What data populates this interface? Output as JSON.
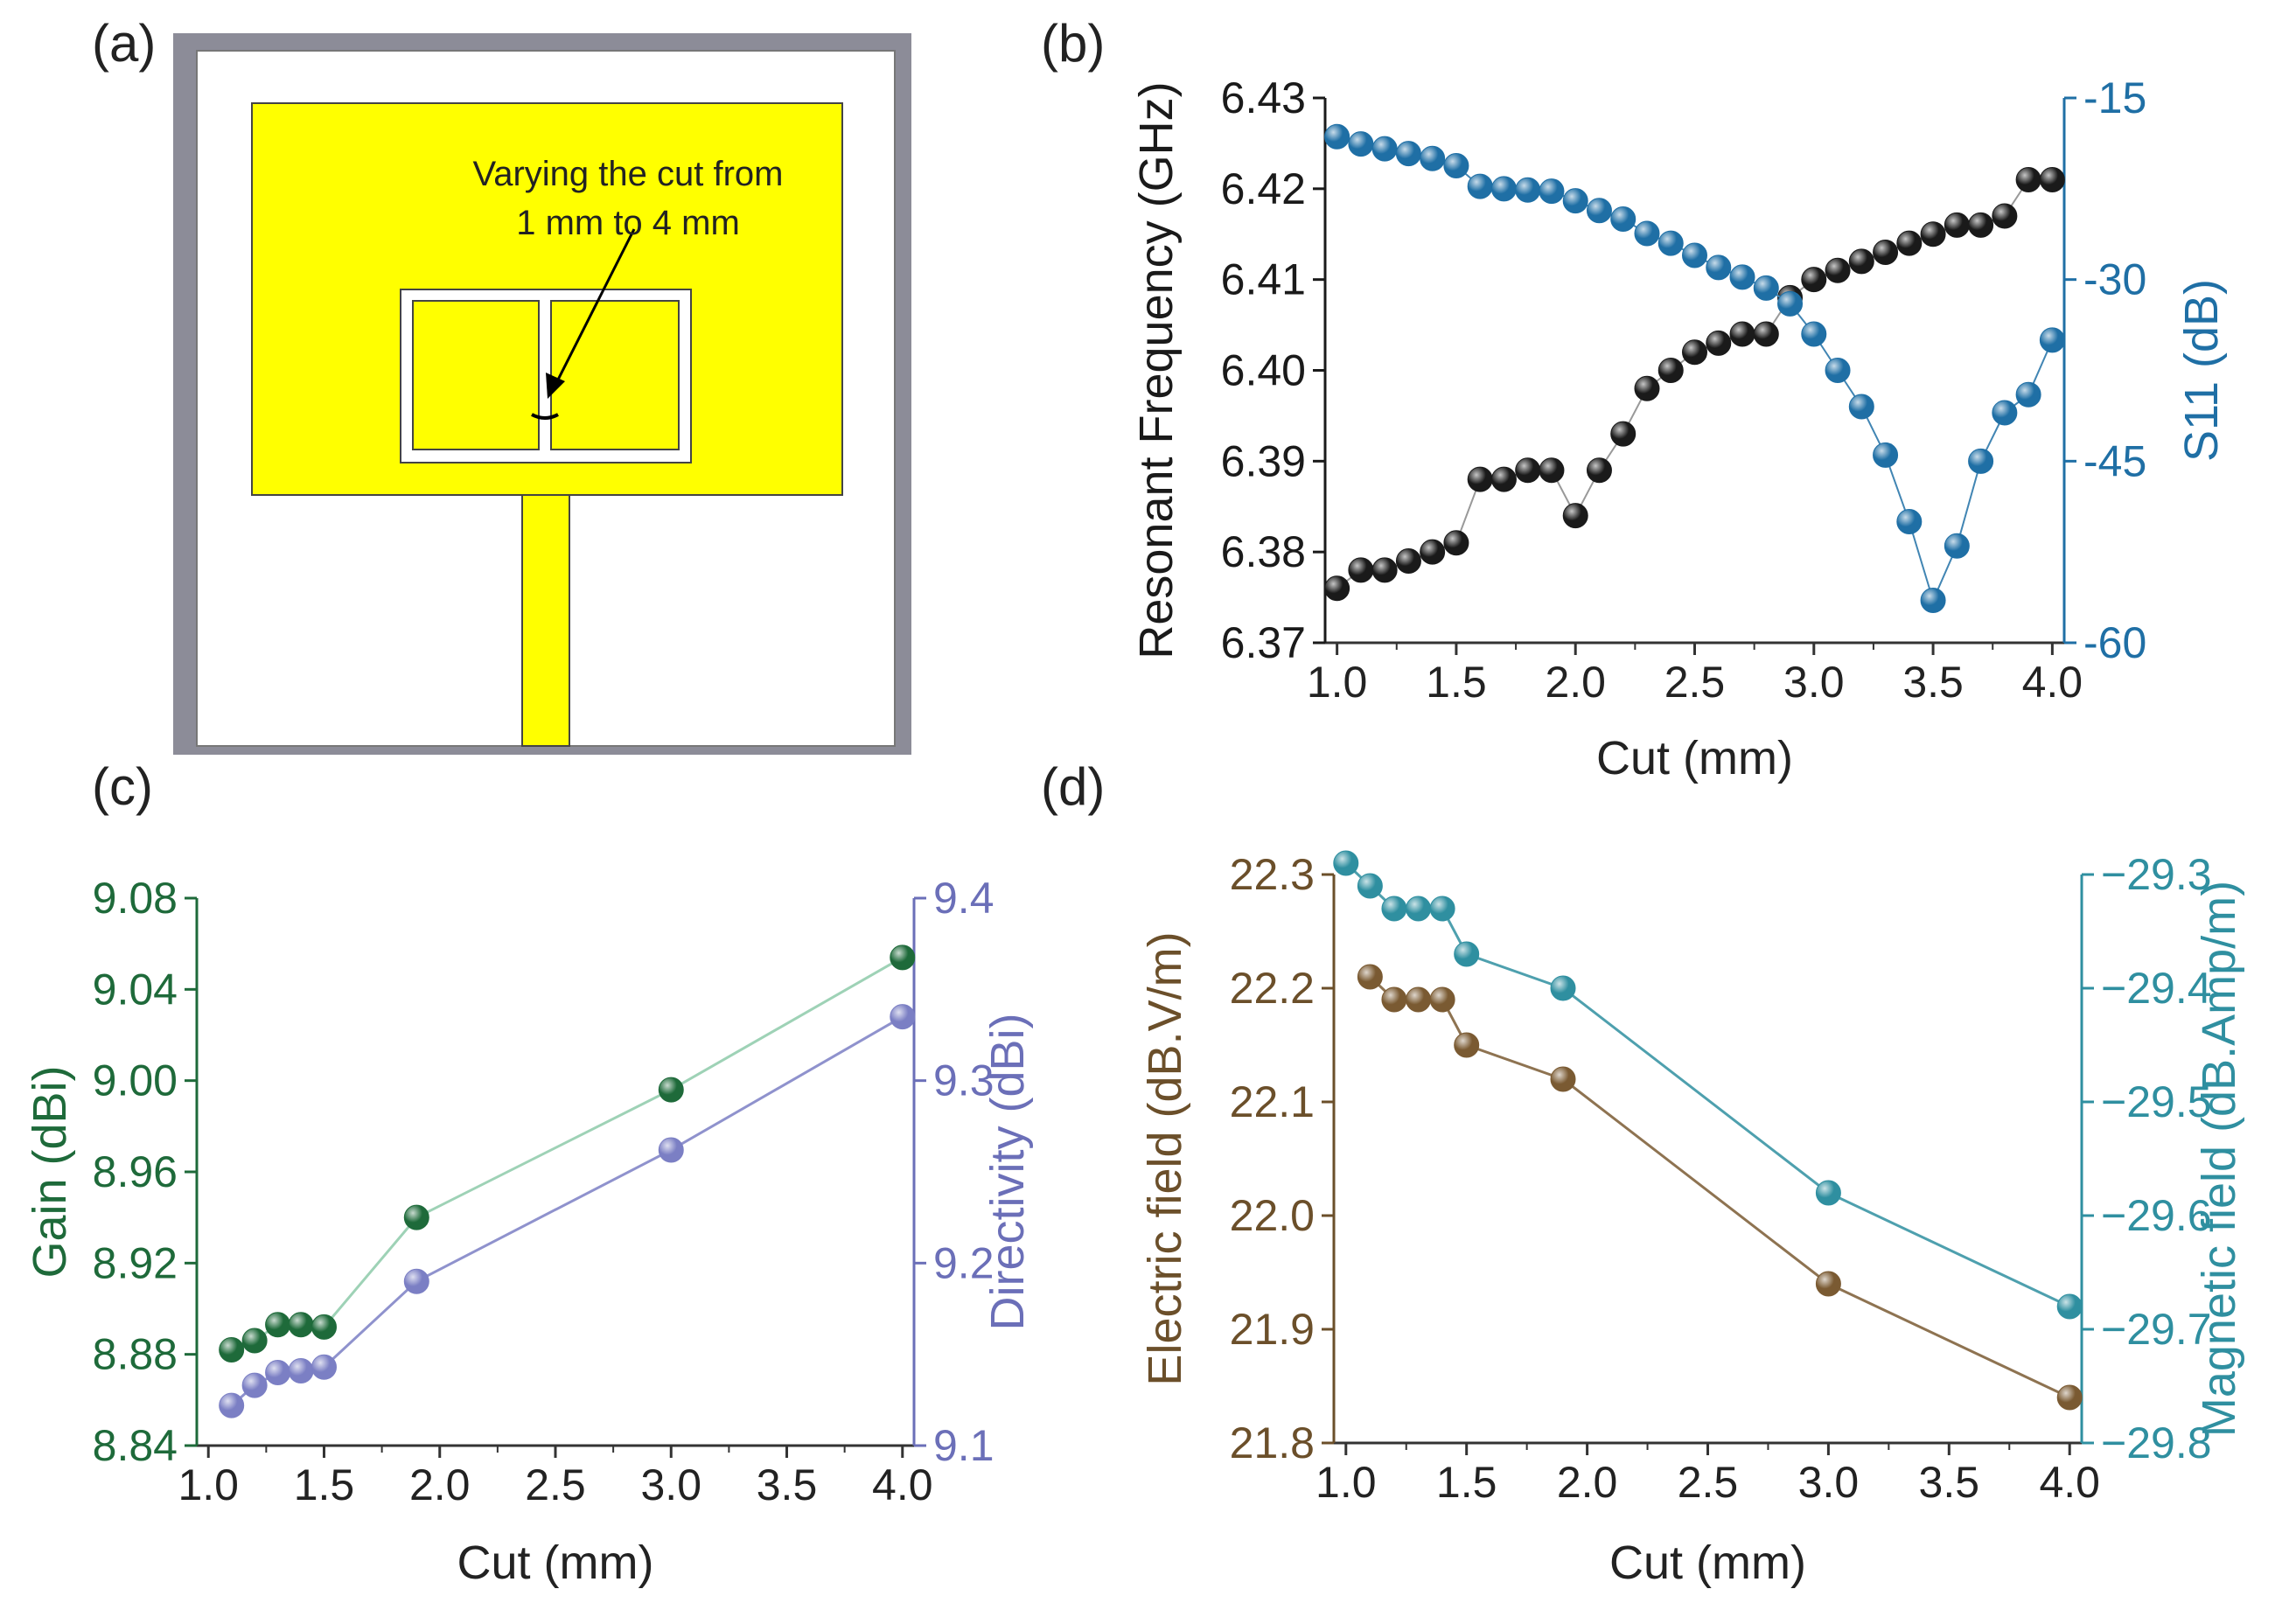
{
  "panels": {
    "a": {
      "label": "(a)",
      "annotation": [
        "Varying the cut from",
        "1 mm to 4 mm"
      ]
    },
    "b": {
      "label": "(b)"
    },
    "c": {
      "label": "(c)"
    },
    "d": {
      "label": "(d)"
    }
  },
  "colors": {
    "black_series": "#1a1a1a",
    "blue_series": "#1f6fa5",
    "green_series": "#1e6a3a",
    "purple_series": "#7b7fc4",
    "brown_series": "#7a5a32",
    "teal_series": "#2f8fa0",
    "patch": "#ffff00",
    "board_border": "#8c8c98"
  },
  "chart_data": [
    {
      "id": "b",
      "type": "scatter",
      "xlabel": "Cut (mm)",
      "xlim": [
        0.95,
        4.05
      ],
      "xticks": [
        "1.0",
        "1.5",
        "2.0",
        "2.5",
        "3.0",
        "3.5",
        "4.0"
      ],
      "left_axis": {
        "label": "Resonant Frequency (GHz)",
        "lim": [
          6.37,
          6.43
        ],
        "ticks": [
          "6.37",
          "6.38",
          "6.39",
          "6.40",
          "6.41",
          "6.42",
          "6.43"
        ]
      },
      "right_axis": {
        "label": "S11 (dB)",
        "lim": [
          -60,
          -15
        ],
        "ticks": [
          "-60",
          "-45",
          "-30",
          "-15"
        ]
      },
      "series": [
        {
          "name": "Resonant Frequency",
          "axis": "left",
          "x": [
            1.0,
            1.1,
            1.2,
            1.3,
            1.4,
            1.5,
            1.6,
            1.7,
            1.8,
            1.9,
            2.0,
            2.1,
            2.2,
            2.3,
            2.4,
            2.5,
            2.6,
            2.7,
            2.8,
            2.9,
            3.0,
            3.1,
            3.2,
            3.3,
            3.4,
            3.5,
            3.6,
            3.7,
            3.8,
            3.9,
            4.0
          ],
          "values": [
            6.376,
            6.378,
            6.378,
            6.379,
            6.38,
            6.381,
            6.388,
            6.388,
            6.389,
            6.389,
            6.384,
            6.389,
            6.393,
            6.398,
            6.4,
            6.402,
            6.403,
            6.404,
            6.404,
            6.408,
            6.41,
            6.411,
            6.412,
            6.413,
            6.414,
            6.415,
            6.416,
            6.416,
            6.417,
            6.421,
            6.421
          ]
        },
        {
          "name": "S11",
          "axis": "right",
          "x": [
            1.0,
            1.1,
            1.2,
            1.3,
            1.4,
            1.5,
            1.6,
            1.7,
            1.8,
            1.9,
            2.0,
            2.1,
            2.2,
            2.3,
            2.4,
            2.5,
            2.6,
            2.7,
            2.8,
            2.9,
            3.0,
            3.1,
            3.2,
            3.3,
            3.4,
            3.5,
            3.6,
            3.7,
            3.8,
            3.9,
            4.0
          ],
          "values": [
            -18.2,
            -18.8,
            -19.2,
            -19.6,
            -20.0,
            -20.6,
            -22.3,
            -22.5,
            -22.6,
            -22.7,
            -23.5,
            -24.3,
            -25.0,
            -26.2,
            -27.0,
            -28.0,
            -29.0,
            -29.8,
            -30.7,
            -32.0,
            -34.5,
            -37.5,
            -40.5,
            -44.5,
            -50.0,
            -56.5,
            -52.0,
            -45.0,
            -41.0,
            -39.5,
            -35.0
          ]
        }
      ]
    },
    {
      "id": "c",
      "type": "line",
      "xlabel": "Cut (mm)",
      "xlim": [
        0.95,
        4.05
      ],
      "xticks": [
        "1.0",
        "1.5",
        "2.0",
        "2.5",
        "3.0",
        "3.5",
        "4.0"
      ],
      "left_axis": {
        "label": "Gain (dBi)",
        "lim": [
          8.84,
          9.08
        ],
        "ticks": [
          "8.84",
          "8.88",
          "8.92",
          "8.96",
          "9.00",
          "9.04",
          "9.08"
        ]
      },
      "right_axis": {
        "label": "Directivity (dBi)",
        "lim": [
          9.1,
          9.4
        ],
        "ticks": [
          "9.1",
          "9.2",
          "9.3",
          "9.4"
        ]
      },
      "series": [
        {
          "name": "Gain",
          "axis": "left",
          "x": [
            1.1,
            1.2,
            1.3,
            1.4,
            1.5,
            1.9,
            3.0,
            4.0
          ],
          "values": [
            8.882,
            8.886,
            8.893,
            8.893,
            8.892,
            8.94,
            8.996,
            9.054
          ]
        },
        {
          "name": "Directivity",
          "axis": "right",
          "x": [
            1.1,
            1.2,
            1.3,
            1.4,
            1.5,
            1.9,
            3.0,
            4.0
          ],
          "values": [
            9.122,
            9.133,
            9.14,
            9.141,
            9.143,
            9.19,
            9.262,
            9.335
          ]
        }
      ]
    },
    {
      "id": "d",
      "type": "line",
      "xlabel": "Cut (mm)",
      "xlim": [
        0.95,
        4.05
      ],
      "xticks": [
        "1.0",
        "1.5",
        "2.0",
        "2.5",
        "3.0",
        "3.5",
        "4.0"
      ],
      "left_axis": {
        "label": "Electric field (dB.V/m)",
        "lim": [
          21.8,
          22.3
        ],
        "ticks": [
          "21.8",
          "21.9",
          "22.0",
          "22.1",
          "22.2",
          "22.3"
        ]
      },
      "right_axis": {
        "label": "Magnetic field (dB.Amp/m)",
        "lim": [
          -29.8,
          -29.3
        ],
        "ticks": [
          "−29.8",
          "−29.7",
          "−29.6",
          "−29.5",
          "−29.4",
          "−29.3"
        ]
      },
      "series": [
        {
          "name": "Electric field",
          "axis": "left",
          "x": [
            1.1,
            1.2,
            1.3,
            1.4,
            1.5,
            1.9,
            3.0,
            4.0
          ],
          "values": [
            22.21,
            22.19,
            22.19,
            22.19,
            22.15,
            22.12,
            21.94,
            21.84
          ]
        },
        {
          "name": "Magnetic field",
          "axis": "right",
          "x": [
            1.0,
            1.1,
            1.2,
            1.3,
            1.4,
            1.5,
            1.9,
            3.0,
            4.0
          ],
          "values": [
            -29.29,
            -29.31,
            -29.33,
            -29.33,
            -29.33,
            -29.37,
            -29.4,
            -29.58,
            -29.68
          ]
        }
      ]
    }
  ]
}
